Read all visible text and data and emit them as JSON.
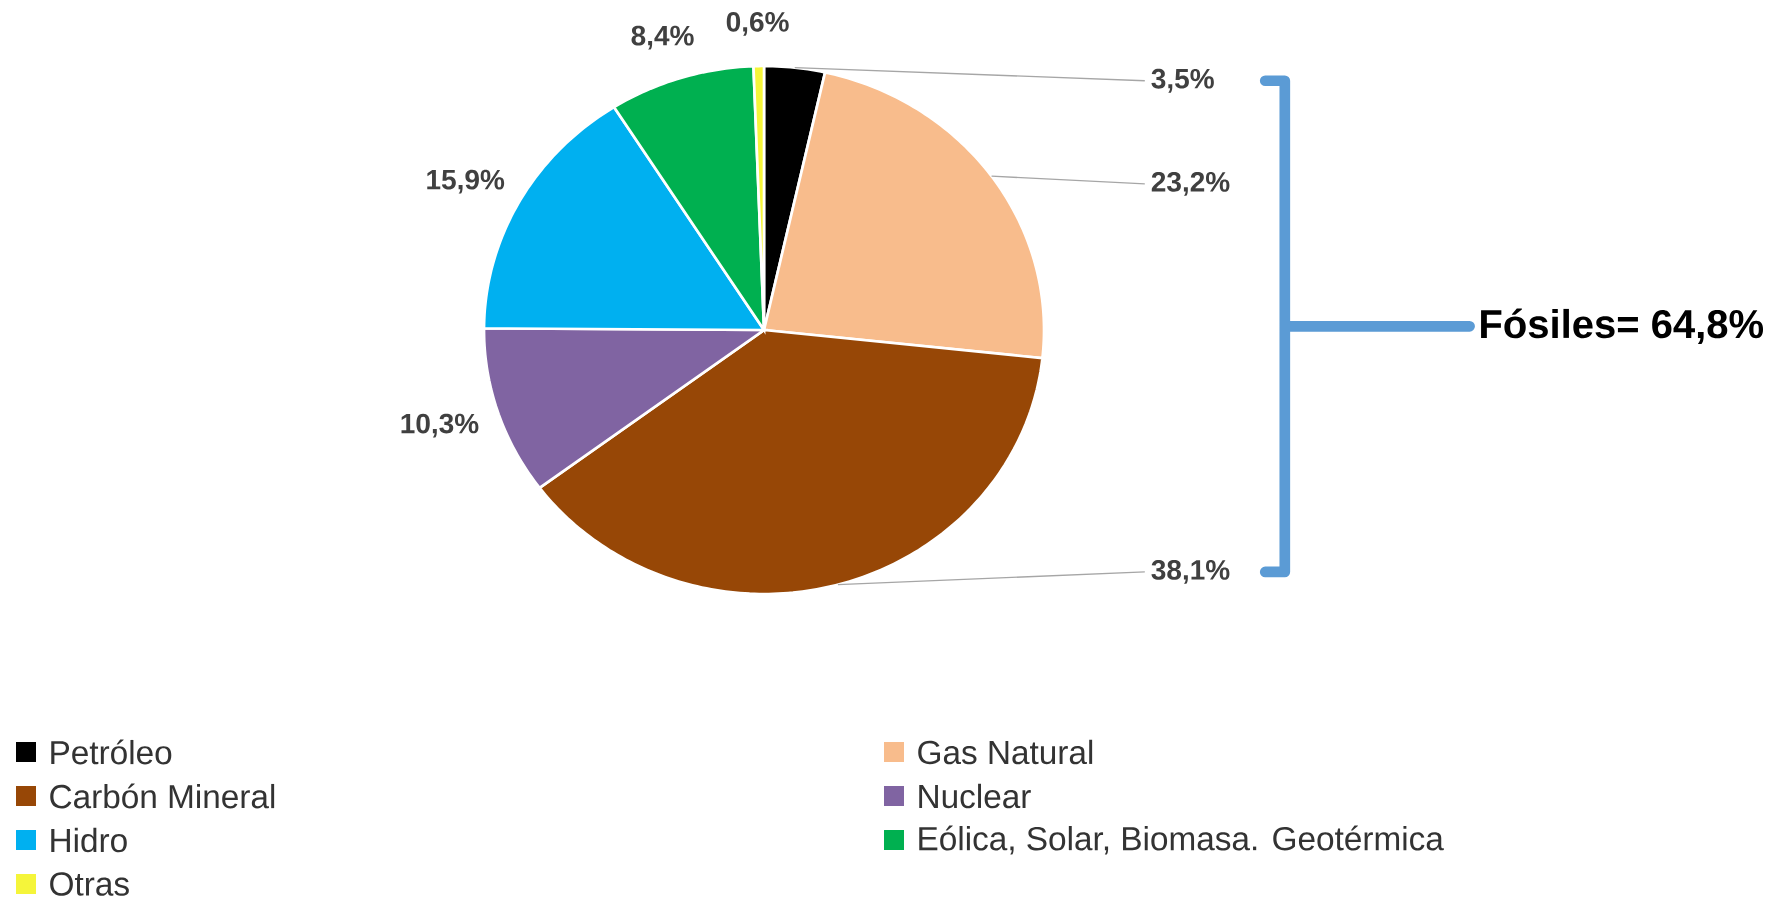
{
  "chart_data": {
    "type": "pie",
    "categories": [
      "Petróleo",
      "Gas Natural",
      "Carbón Mineral",
      "Nuclear",
      "Hidro",
      "Eólica, Solar, Biomasa. Geotérmica",
      "Otras"
    ],
    "values": [
      3.5,
      23.2,
      38.1,
      10.3,
      15.9,
      8.4,
      0.6
    ],
    "colors": [
      "#000000",
      "#f8bc8c",
      "#974706",
      "#8064a2",
      "#00b0f0",
      "#00b050",
      "#f5f53a"
    ],
    "value_labels": [
      "3,5%",
      "23,2%",
      "38,1%",
      "10,3%",
      "15,9%",
      "8,4%",
      "0,6%"
    ],
    "annotations": [
      "Fósiles= 64,8%"
    ],
    "legend": "bottom"
  }
}
